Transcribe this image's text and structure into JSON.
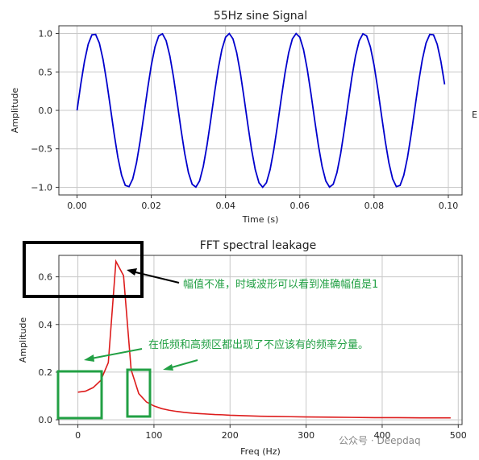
{
  "chart_data": [
    {
      "type": "line",
      "title": "55Hz sine Signal",
      "xlabel": "Time (s)",
      "ylabel": "Amplitude",
      "xlim": [
        -0.0049,
        0.1037
      ],
      "ylim": [
        -1.1,
        1.1
      ],
      "xticks": [
        0.0,
        0.02,
        0.04,
        0.06,
        0.08,
        0.1
      ],
      "xtick_labels": [
        "0.00",
        "0.02",
        "0.04",
        "0.06",
        "0.08",
        "0.10"
      ],
      "yticks": [
        -1.0,
        -0.5,
        0.0,
        0.5,
        1.0
      ],
      "ytick_labels": [
        "−1.0",
        "−0.5",
        "0.0",
        "0.5",
        "1.0"
      ],
      "grid": true,
      "series": [
        {
          "color": "#0000cc",
          "frequency_hz": 55,
          "sample_step": 0.001,
          "x_end": 0.099
        }
      ]
    },
    {
      "type": "line",
      "title": "FFT spectral leakage",
      "xlabel": "Freq (Hz)",
      "ylabel": "Amplitude",
      "xlim": [
        -25,
        505
      ],
      "ylim": [
        -0.02,
        0.69
      ],
      "xticks": [
        0,
        100,
        200,
        300,
        400,
        500
      ],
      "xtick_labels": [
        "0",
        "100",
        "200",
        "300",
        "400",
        "500"
      ],
      "yticks": [
        0.0,
        0.2,
        0.4,
        0.6
      ],
      "ytick_labels": [
        "0.0",
        "0.2",
        "0.4",
        "0.6"
      ],
      "grid": true,
      "series": [
        {
          "color": "#dd1c1c",
          "x": [
            0,
            10,
            20,
            30,
            40,
            50,
            60,
            70,
            80,
            90,
            100,
            110,
            120,
            130,
            140,
            150,
            160,
            170,
            180,
            190,
            200,
            220,
            240,
            260,
            280,
            300,
            330,
            360,
            390,
            420,
            450,
            490
          ],
          "y": [
            0.116,
            0.12,
            0.135,
            0.165,
            0.24,
            0.665,
            0.605,
            0.21,
            0.11,
            0.075,
            0.058,
            0.047,
            0.04,
            0.035,
            0.031,
            0.028,
            0.026,
            0.024,
            0.022,
            0.021,
            0.019,
            0.017,
            0.015,
            0.014,
            0.013,
            0.012,
            0.011,
            0.01,
            0.009,
            0.009,
            0.008,
            0.008
          ]
        }
      ]
    }
  ],
  "annotations": {
    "amplitude_note": "幅值不准，时域波形可以看到准确幅值是1",
    "leakage_note": "在低频和高频区都出现了不应该有的频率分量。",
    "color": "#22a044",
    "box_color": "#000000"
  },
  "watermark": "公众号 · Deepdaq",
  "right_edge_glyph": "E"
}
